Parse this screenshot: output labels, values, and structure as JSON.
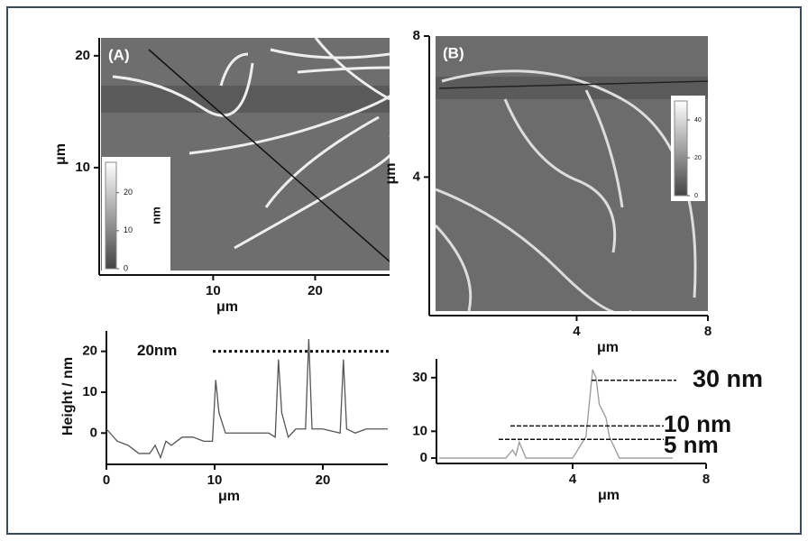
{
  "chart_data": [
    {
      "type": "image",
      "panel": "(A)",
      "xlim": [
        -1,
        27.3
      ],
      "xticks": [
        10,
        20
      ],
      "ylim": [
        0.8,
        21.6
      ],
      "yticks": [
        10,
        20
      ],
      "x_label": "μm",
      "y_label": "μm",
      "colorbar": {
        "lim": [
          0,
          28
        ],
        "ticks": [
          0,
          10,
          20
        ],
        "label": "nm"
      }
    },
    {
      "type": "image",
      "panel": "(B)",
      "xlim": [
        -0.3,
        8
      ],
      "xticks": [
        4,
        8
      ],
      "ylim": [
        0.2,
        8
      ],
      "yticks": [
        4,
        8
      ],
      "x_label": "μm",
      "y_label": "μm",
      "colorbar": {
        "lim": [
          0,
          50
        ],
        "ticks": [
          0,
          20,
          40
        ]
      }
    },
    {
      "type": "line",
      "xlim": [
        0,
        26
      ],
      "xticks": [
        0,
        10,
        20
      ],
      "ylim": [
        -7,
        25
      ],
      "yticks": [
        0,
        10,
        20
      ],
      "x_label": "μm",
      "y_label": "Height  / nm",
      "color": "#555555",
      "x": [
        0,
        1,
        2,
        3,
        4,
        4.5,
        5,
        5.5,
        6,
        7,
        8,
        9,
        9.8,
        10.1,
        10.4,
        11,
        13,
        15,
        15.6,
        15.9,
        16.2,
        16.8,
        17.5,
        18.4,
        18.7,
        19,
        20,
        21.6,
        21.9,
        22.2,
        23,
        24,
        25,
        26
      ],
      "values": [
        1,
        -2,
        -3,
        -5,
        -5,
        -3,
        -6,
        -2,
        -3,
        -1,
        -1,
        -2,
        -2,
        13,
        5,
        0,
        0,
        0,
        -1,
        18,
        5,
        -1,
        1,
        1,
        23,
        1,
        1,
        0,
        18,
        1,
        0,
        1,
        1,
        1
      ],
      "annotations": [
        {
          "label": "20nm",
          "y": 20
        }
      ]
    },
    {
      "type": "line",
      "xlim": [
        0,
        8
      ],
      "xticks": [
        4,
        8
      ],
      "ylim": [
        -2,
        37
      ],
      "yticks": [
        0,
        10,
        30
      ],
      "x_label": "μm",
      "color": "#999999",
      "x": [
        0,
        1,
        2,
        2.2,
        2.3,
        2.4,
        2.6,
        3,
        4,
        4.4,
        4.6,
        4.7,
        4.8,
        5,
        5.1,
        5.4,
        6,
        7
      ],
      "values": [
        0,
        0,
        0,
        3,
        1,
        6,
        0,
        0,
        0,
        8,
        33,
        30,
        20,
        15,
        8,
        0,
        0,
        0
      ],
      "annotations": [
        {
          "label": "30 nm",
          "y": 29
        },
        {
          "label": "10 nm",
          "y": 12
        },
        {
          "label": "5 nm",
          "y": 7
        }
      ]
    }
  ]
}
